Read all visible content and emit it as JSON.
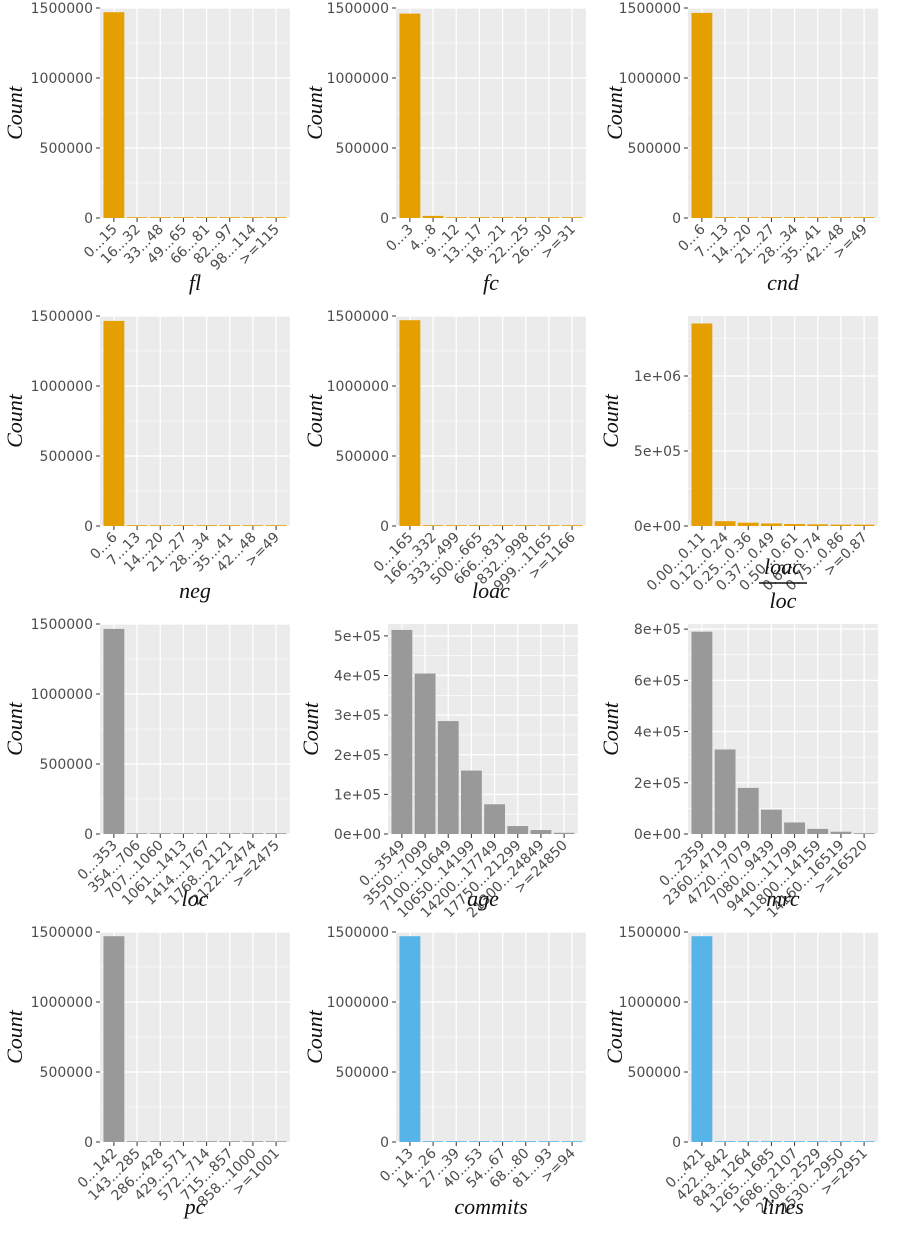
{
  "colors": {
    "orange": "#E69F00",
    "gray": "#999999",
    "blue": "#56B4E9",
    "panel_bg": "#EBEBEB",
    "grid": "#FFFFFF"
  },
  "chart_data": [
    {
      "type": "bar",
      "xlabel": "fl",
      "ylabel": "Count",
      "color": "orange",
      "ylim": [
        0,
        1500000
      ],
      "yticks": [
        0,
        500000,
        1000000,
        1500000
      ],
      "ytick_labels": [
        "0",
        "500000",
        "1000000",
        "1500000"
      ],
      "categories": [
        "0...15",
        "16...32",
        "33...48",
        "49...65",
        "66...81",
        "82...97",
        "98...114",
        ">=115"
      ],
      "values": [
        1470000,
        3000,
        1500,
        800,
        500,
        300,
        200,
        400
      ]
    },
    {
      "type": "bar",
      "xlabel": "fc",
      "ylabel": "Count",
      "color": "orange",
      "ylim": [
        0,
        1500000
      ],
      "yticks": [
        0,
        500000,
        1000000,
        1500000
      ],
      "ytick_labels": [
        "0",
        "500000",
        "1000000",
        "1500000"
      ],
      "categories": [
        "0...3",
        "4...8",
        "9...12",
        "13...17",
        "18...21",
        "22...25",
        "26...30",
        ">=31"
      ],
      "values": [
        1460000,
        15000,
        4000,
        1500,
        800,
        500,
        300,
        600
      ]
    },
    {
      "type": "bar",
      "xlabel": "cnd",
      "ylabel": "Count",
      "color": "orange",
      "ylim": [
        0,
        1500000
      ],
      "yticks": [
        0,
        500000,
        1000000,
        1500000
      ],
      "ytick_labels": [
        "0",
        "500000",
        "1000000",
        "1500000"
      ],
      "categories": [
        "0...6",
        "7...13",
        "14...20",
        "21...27",
        "28...34",
        "35...41",
        "42...48",
        ">=49"
      ],
      "values": [
        1465000,
        6000,
        2000,
        900,
        500,
        300,
        200,
        500
      ]
    },
    {
      "type": "bar",
      "xlabel": "neg",
      "ylabel": "Count",
      "color": "orange",
      "ylim": [
        0,
        1500000
      ],
      "yticks": [
        0,
        500000,
        1000000,
        1500000
      ],
      "ytick_labels": [
        "0",
        "500000",
        "1000000",
        "1500000"
      ],
      "categories": [
        "0...6",
        "7...13",
        "14...20",
        "21...27",
        "28...34",
        "35...41",
        "42...48",
        ">=49"
      ],
      "values": [
        1465000,
        6000,
        1500,
        700,
        400,
        300,
        200,
        400
      ]
    },
    {
      "type": "bar",
      "xlabel": "loac",
      "ylabel": "Count",
      "color": "orange",
      "ylim": [
        0,
        1500000
      ],
      "yticks": [
        0,
        500000,
        1000000,
        1500000
      ],
      "ytick_labels": [
        "0",
        "500000",
        "1000000",
        "1500000"
      ],
      "categories": [
        "0...165",
        "166...332",
        "333...499",
        "500...665",
        "666...831",
        "832...998",
        "999...1165",
        ">=1166"
      ],
      "values": [
        1470000,
        2000,
        600,
        300,
        200,
        100,
        100,
        300
      ]
    },
    {
      "type": "bar",
      "xlabel_numerator": "loac",
      "xlabel_denominator": "loc",
      "ylabel": "Count",
      "color": "orange",
      "ylim": [
        0,
        1400000
      ],
      "yticks": [
        0,
        500000,
        1000000
      ],
      "ytick_labels": [
        "0e+00",
        "5e+05",
        "1e+06"
      ],
      "categories": [
        "0.00...0.11",
        "0.12...0.24",
        "0.25...0.36",
        "0.37...0.49",
        "0.50...0.61",
        "0.62...0.74",
        "0.75...0.86",
        ">=0.87"
      ],
      "values": [
        1350000,
        32000,
        22000,
        17000,
        13000,
        11000,
        9000,
        9000
      ]
    },
    {
      "type": "bar",
      "xlabel": "loc",
      "ylabel": "Count",
      "color": "gray",
      "ylim": [
        0,
        1500000
      ],
      "yticks": [
        0,
        500000,
        1000000,
        1500000
      ],
      "ytick_labels": [
        "0",
        "500000",
        "1000000",
        "1500000"
      ],
      "categories": [
        "0...353",
        "354...706",
        "707...1060",
        "1061...1413",
        "1414...1767",
        "1768...2121",
        "2122...2474",
        ">=2475"
      ],
      "values": [
        1465000,
        5000,
        1200,
        500,
        300,
        200,
        100,
        300
      ]
    },
    {
      "type": "bar",
      "xlabel": "age",
      "ylabel": "Count",
      "color": "gray",
      "ylim": [
        0,
        530000
      ],
      "yticks": [
        0,
        100000,
        200000,
        300000,
        400000,
        500000
      ],
      "ytick_labels": [
        "0e+00",
        "1e+05",
        "2e+05",
        "3e+05",
        "4e+05",
        "5e+05"
      ],
      "categories": [
        "0...3549",
        "3550...7099",
        "7100...10649",
        "10650...14199",
        "14200...17749",
        "17750...21299",
        "21300...24849",
        ">=24850"
      ],
      "values": [
        515000,
        405000,
        285000,
        160000,
        75000,
        20000,
        10000,
        3000
      ]
    },
    {
      "type": "bar",
      "xlabel": "mrc",
      "ylabel": "Count",
      "color": "gray",
      "ylim": [
        0,
        820000
      ],
      "yticks": [
        0,
        200000,
        400000,
        600000,
        800000
      ],
      "ytick_labels": [
        "0e+00",
        "2e+05",
        "4e+05",
        "6e+05",
        "8e+05"
      ],
      "categories": [
        "0...2359",
        "2360...4719",
        "4720...7079",
        "7080...9439",
        "9440...11799",
        "11800...14159",
        "14160...16519",
        ">=16520"
      ],
      "values": [
        790000,
        330000,
        180000,
        95000,
        45000,
        20000,
        9000,
        3000
      ]
    },
    {
      "type": "bar",
      "xlabel": "pc",
      "ylabel": "Count",
      "color": "gray",
      "ylim": [
        0,
        1500000
      ],
      "yticks": [
        0,
        500000,
        1000000,
        1500000
      ],
      "ytick_labels": [
        "0",
        "500000",
        "1000000",
        "1500000"
      ],
      "categories": [
        "0...142",
        "143...285",
        "286...428",
        "429...571",
        "572...714",
        "715...857",
        "858...1000",
        ">=1001"
      ],
      "values": [
        1470000,
        1500,
        500,
        200,
        100,
        100,
        100,
        100
      ]
    },
    {
      "type": "bar",
      "xlabel": "commits",
      "ylabel": "Count",
      "color": "blue",
      "ylim": [
        0,
        1500000
      ],
      "yticks": [
        0,
        500000,
        1000000,
        1500000
      ],
      "ytick_labels": [
        "0",
        "500000",
        "1000000",
        "1500000"
      ],
      "categories": [
        "0...13",
        "14...26",
        "27...39",
        "40...53",
        "54...67",
        "68...80",
        "81...93",
        ">=94"
      ],
      "values": [
        1470000,
        2000,
        500,
        200,
        100,
        100,
        100,
        200
      ]
    },
    {
      "type": "bar",
      "xlabel": "lines",
      "ylabel": "Count",
      "color": "blue",
      "ylim": [
        0,
        1500000
      ],
      "yticks": [
        0,
        500000,
        1000000,
        1500000
      ],
      "ytick_labels": [
        "0",
        "500000",
        "1000000",
        "1500000"
      ],
      "categories": [
        "0...421",
        "422...842",
        "843...1264",
        "1265...1685",
        "1686...2107",
        "2108...2529",
        "2530...2950",
        ">=2951"
      ],
      "values": [
        1470000,
        1500,
        500,
        200,
        100,
        100,
        100,
        200
      ]
    }
  ]
}
